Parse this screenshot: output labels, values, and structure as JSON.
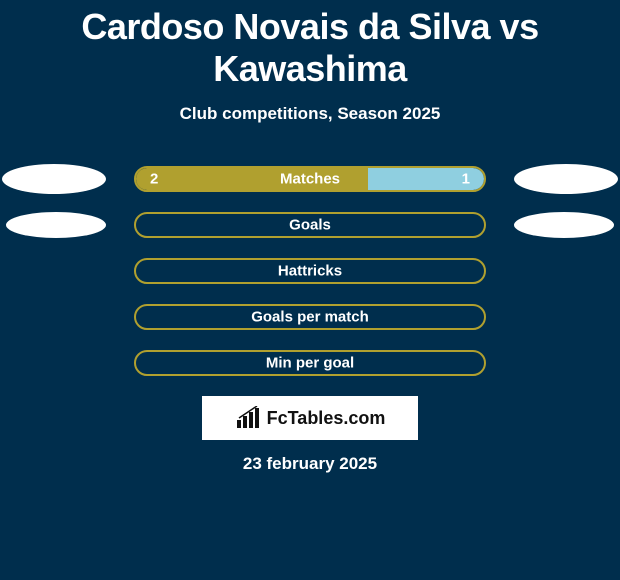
{
  "background_color": "#002e4d",
  "bar_color": "#b0a02f",
  "fill_left_color": "#b0a02f",
  "fill_right_color": "#8fcfe0",
  "title": "Cardoso Novais da Silva vs Kawashima",
  "subtitle": "Club competitions, Season 2025",
  "date": "23 february 2025",
  "logo_text": "FcTables.com",
  "bar_track_width": 352,
  "rows": [
    {
      "label": "Matches",
      "left_value": "2",
      "right_value": "1",
      "left_pct": 0.666,
      "right_pct": 0.334,
      "show_avatars": true
    },
    {
      "label": "Goals",
      "left_value": "",
      "right_value": "",
      "left_pct": 0,
      "right_pct": 0,
      "show_avatars": true,
      "small_avatars": true
    },
    {
      "label": "Hattricks",
      "left_value": "",
      "right_value": "",
      "left_pct": 0,
      "right_pct": 0,
      "show_avatars": false
    },
    {
      "label": "Goals per match",
      "left_value": "",
      "right_value": "",
      "left_pct": 0,
      "right_pct": 0,
      "show_avatars": false
    },
    {
      "label": "Min per goal",
      "left_value": "",
      "right_value": "",
      "left_pct": 0,
      "right_pct": 0,
      "show_avatars": false
    }
  ]
}
